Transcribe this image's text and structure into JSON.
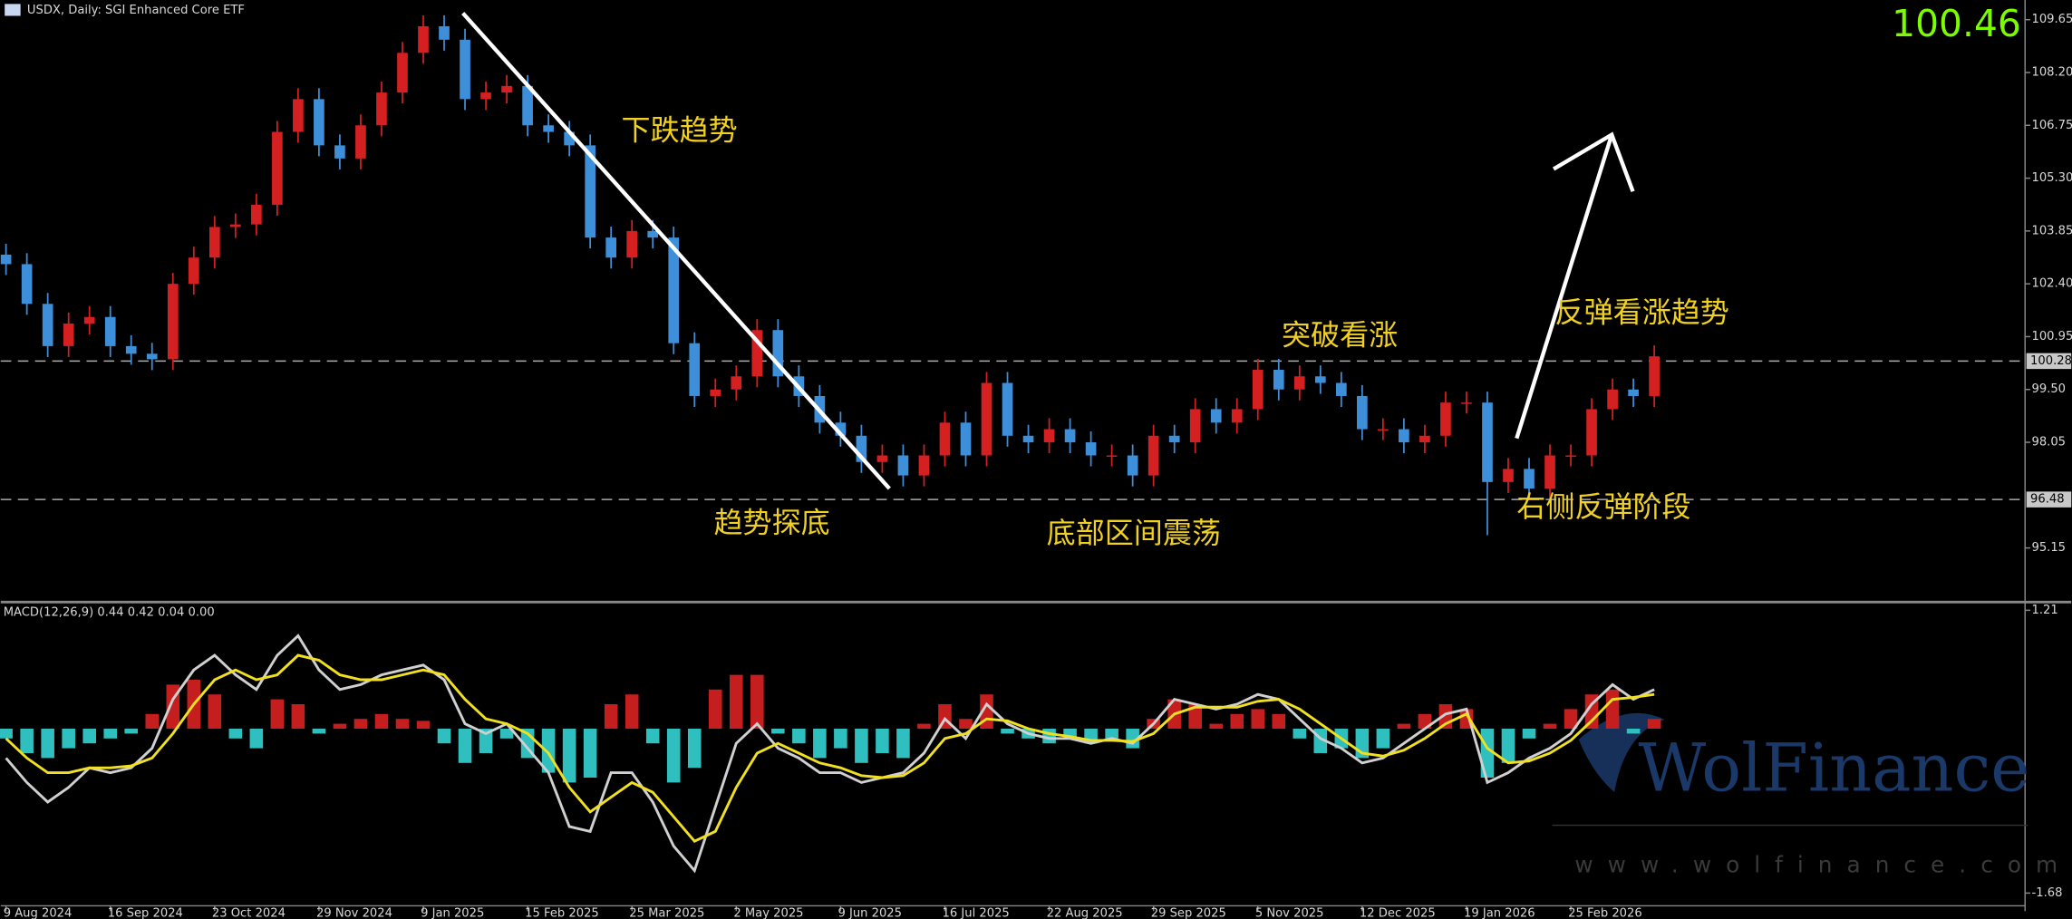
{
  "chart_data": [
    {
      "type": "candlestick",
      "title": "USDX, Daily:  SGI Enhanced Core ETF",
      "current_price": 100.46,
      "up_color": "#d42020",
      "down_color": "#3d8fd9",
      "open": [
        103.2,
        102.94,
        101.85,
        100.69,
        101.31,
        101.49,
        100.69,
        100.48,
        100.33,
        102.4,
        103.12,
        103.96,
        104.03,
        104.57,
        106.57,
        107.47,
        106.2,
        105.84,
        106.75,
        107.65,
        108.74,
        109.47,
        109.1,
        107.47,
        107.65,
        107.83,
        106.75,
        106.57,
        106.2,
        103.67,
        103.12,
        103.85,
        103.67,
        100.77,
        99.32,
        99.5,
        99.86,
        101.13,
        99.86,
        99.32,
        98.59,
        98.23,
        97.51,
        97.69,
        97.14,
        97.69,
        98.59,
        97.69,
        99.68,
        98.23,
        98.05,
        98.41,
        98.05,
        97.69,
        97.69,
        97.14,
        98.23,
        98.05,
        98.96,
        98.59,
        98.96,
        100.04,
        99.5,
        99.86,
        99.68,
        99.32,
        98.41,
        98.41,
        98.05,
        98.23,
        99.14,
        99.14,
        96.96,
        97.32,
        96.78,
        97.69,
        97.69,
        98.96,
        99.5,
        99.32
      ],
      "high": [
        103.5,
        103.24,
        102.15,
        101.61,
        101.79,
        101.79,
        100.99,
        100.78,
        102.7,
        103.42,
        104.26,
        104.33,
        104.87,
        106.87,
        107.77,
        107.77,
        106.5,
        107.05,
        107.95,
        109.04,
        109.77,
        109.77,
        109.4,
        107.95,
        108.13,
        108.13,
        107.05,
        106.87,
        106.5,
        103.97,
        104.15,
        104.15,
        103.97,
        101.07,
        99.8,
        100.16,
        101.43,
        101.43,
        100.16,
        99.62,
        98.89,
        98.53,
        97.99,
        97.99,
        97.99,
        98.89,
        98.89,
        99.98,
        99.98,
        98.53,
        98.71,
        98.71,
        98.35,
        97.99,
        97.99,
        98.53,
        98.53,
        99.26,
        99.26,
        99.26,
        100.34,
        100.34,
        100.16,
        100.16,
        99.98,
        99.62,
        98.71,
        98.71,
        98.53,
        99.44,
        99.44,
        99.44,
        97.62,
        97.62,
        97.99,
        97.99,
        99.26,
        99.8,
        99.8,
        100.71
      ],
      "low": [
        102.64,
        101.55,
        100.39,
        100.39,
        101.01,
        100.39,
        100.18,
        100.03,
        100.03,
        102.1,
        102.82,
        103.66,
        103.73,
        104.27,
        106.27,
        105.9,
        105.54,
        105.54,
        106.45,
        107.35,
        108.44,
        108.8,
        107.17,
        107.17,
        107.35,
        106.45,
        106.27,
        105.9,
        103.37,
        102.82,
        102.82,
        103.37,
        100.47,
        99.02,
        99.02,
        99.2,
        99.56,
        99.56,
        99.02,
        98.29,
        97.93,
        97.21,
        97.21,
        96.84,
        96.84,
        97.39,
        97.39,
        97.39,
        97.93,
        97.75,
        97.75,
        97.75,
        97.39,
        97.39,
        96.84,
        96.84,
        97.75,
        97.75,
        98.29,
        98.29,
        98.66,
        99.2,
        99.2,
        99.38,
        99.02,
        98.11,
        98.11,
        97.75,
        97.75,
        97.93,
        98.84,
        95.5,
        96.66,
        96.48,
        96.48,
        97.39,
        97.39,
        98.66,
        99.02,
        99.02
      ],
      "close": [
        102.94,
        101.85,
        100.69,
        101.31,
        101.49,
        100.69,
        100.48,
        100.33,
        102.4,
        103.12,
        103.96,
        104.03,
        104.57,
        106.57,
        107.47,
        106.2,
        105.84,
        106.75,
        107.65,
        108.74,
        109.47,
        109.1,
        107.47,
        107.65,
        107.83,
        106.75,
        106.57,
        106.2,
        103.67,
        103.12,
        103.85,
        103.67,
        100.77,
        99.32,
        99.5,
        99.86,
        101.13,
        99.86,
        99.32,
        98.59,
        98.23,
        97.51,
        97.69,
        97.14,
        97.69,
        98.59,
        97.69,
        99.68,
        98.23,
        98.05,
        98.41,
        98.05,
        97.69,
        97.69,
        97.14,
        98.23,
        98.05,
        98.96,
        98.59,
        98.96,
        100.04,
        99.5,
        99.86,
        99.68,
        99.32,
        98.41,
        98.41,
        98.05,
        98.23,
        99.14,
        99.14,
        96.96,
        97.32,
        96.78,
        97.69,
        97.69,
        98.96,
        99.5,
        99.32,
        100.41
      ],
      "ylim": [
        93.7,
        110.19
      ],
      "yticks": [
        109.65,
        {
          "value": 108.2,
          "label": "108.20"
        },
        106.75,
        {
          "value": 105.3,
          "label": "105.30"
        },
        103.85,
        {
          "value": 102.4,
          "label": "102.40"
        },
        100.95,
        {
          "value": 99.5,
          "label": "99.50"
        },
        98.05,
        95.15
      ],
      "xticks": [
        {
          "value": 0,
          "label": "9 Aug 2024"
        },
        {
          "value": 5,
          "label": "16 Sep 2024"
        },
        {
          "value": 10,
          "label": "23 Oct 2024"
        },
        {
          "value": 15,
          "label": "29 Nov 2024"
        },
        {
          "value": 20,
          "label": "9 Jan 2025"
        },
        {
          "value": 25,
          "label": "15 Feb 2025"
        },
        {
          "value": 30,
          "label": "25 Mar 2025"
        },
        {
          "value": 35,
          "label": "2 May 2025"
        },
        {
          "value": 40,
          "label": "9 Jun 2025"
        },
        {
          "value": 45,
          "label": "16 Jul 2025"
        },
        {
          "value": 50,
          "label": "22 Aug 2025"
        },
        {
          "value": 55,
          "label": "29 Sep 2025"
        },
        {
          "value": 60,
          "label": "5 Nov 2025"
        },
        {
          "value": 65,
          "label": "12 Dec 2025"
        },
        {
          "value": 70,
          "label": "19 Jan 2026"
        },
        {
          "value": 75,
          "label": "25 Feb 2026"
        }
      ],
      "price_levels": [
        100.28,
        96.48
      ],
      "annotations": [
        "下跌趋势",
        "趋势探底",
        "底部区间震荡",
        "突破看涨",
        "反弹看涨趋势",
        "右侧反弹阶段"
      ]
    },
    {
      "type": "macd",
      "title": "MACD(12,26,9) 0.44 0.42 0.04 0.00",
      "pos_color": "#c41e1e",
      "neg_color": "#2fbfbf",
      "macd_color": "#d0d0d0",
      "signal_color": "#f0e020",
      "histogram": [
        -0.1,
        -0.25,
        -0.3,
        -0.2,
        -0.15,
        -0.1,
        -0.05,
        0.15,
        0.45,
        0.5,
        0.35,
        -0.1,
        -0.2,
        0.3,
        0.25,
        -0.05,
        0.05,
        0.1,
        0.15,
        0.1,
        0.08,
        -0.15,
        -0.35,
        -0.25,
        -0.1,
        -0.3,
        -0.45,
        -0.55,
        -0.5,
        0.25,
        0.35,
        -0.15,
        -0.55,
        -0.4,
        0.4,
        0.55,
        0.55,
        -0.05,
        -0.15,
        -0.3,
        -0.2,
        -0.35,
        -0.25,
        -0.3,
        0.05,
        0.25,
        0.1,
        0.35,
        -0.05,
        -0.1,
        -0.15,
        -0.1,
        -0.15,
        -0.1,
        -0.2,
        0.1,
        0.3,
        0.25,
        0.05,
        0.15,
        0.2,
        0.15,
        -0.1,
        -0.25,
        -0.2,
        -0.3,
        -0.2,
        0.05,
        0.15,
        0.25,
        0.2,
        -0.5,
        -0.35,
        -0.1,
        0.05,
        0.2,
        0.35,
        0.4,
        -0.05,
        0.1
      ],
      "macd": [
        -0.3,
        -0.55,
        -0.75,
        -0.6,
        -0.4,
        -0.45,
        -0.4,
        -0.2,
        0.3,
        0.6,
        0.75,
        0.55,
        0.4,
        0.75,
        0.95,
        0.6,
        0.4,
        0.45,
        0.55,
        0.6,
        0.65,
        0.5,
        0.05,
        -0.05,
        0.05,
        -0.2,
        -0.45,
        -1.0,
        -1.05,
        -0.45,
        -0.45,
        -0.75,
        -1.2,
        -1.45,
        -0.8,
        -0.15,
        0.05,
        -0.2,
        -0.3,
        -0.45,
        -0.45,
        -0.55,
        -0.5,
        -0.45,
        -0.25,
        0.1,
        -0.1,
        0.25,
        0.05,
        -0.05,
        -0.1,
        -0.1,
        -0.15,
        -0.1,
        -0.15,
        0.05,
        0.3,
        0.25,
        0.2,
        0.25,
        0.35,
        0.3,
        0.1,
        -0.1,
        -0.2,
        -0.35,
        -0.3,
        -0.15,
        0.0,
        0.15,
        0.2,
        -0.55,
        -0.45,
        -0.3,
        -0.2,
        -0.05,
        0.25,
        0.45,
        0.3,
        0.4
      ],
      "signal": [
        -0.1,
        -0.3,
        -0.45,
        -0.45,
        -0.4,
        -0.4,
        -0.38,
        -0.3,
        -0.05,
        0.25,
        0.5,
        0.6,
        0.5,
        0.55,
        0.75,
        0.7,
        0.55,
        0.5,
        0.5,
        0.55,
        0.6,
        0.55,
        0.3,
        0.1,
        0.05,
        -0.05,
        -0.25,
        -0.6,
        -0.85,
        -0.7,
        -0.55,
        -0.65,
        -0.9,
        -1.15,
        -1.05,
        -0.6,
        -0.25,
        -0.15,
        -0.25,
        -0.35,
        -0.4,
        -0.48,
        -0.5,
        -0.48,
        -0.35,
        -0.1,
        -0.05,
        0.1,
        0.08,
        0.0,
        -0.05,
        -0.08,
        -0.12,
        -0.12,
        -0.13,
        -0.05,
        0.15,
        0.22,
        0.22,
        0.22,
        0.28,
        0.3,
        0.2,
        0.05,
        -0.1,
        -0.25,
        -0.28,
        -0.22,
        -0.1,
        0.05,
        0.15,
        -0.2,
        -0.35,
        -0.33,
        -0.25,
        -0.12,
        0.08,
        0.3,
        0.32,
        0.35
      ],
      "ylim": [
        -1.81,
        1.28
      ],
      "yticks": [
        1.21,
        -1.68
      ]
    }
  ],
  "watermark": {
    "brand": "WolFinance",
    "url": "www.wolfinance.com"
  }
}
